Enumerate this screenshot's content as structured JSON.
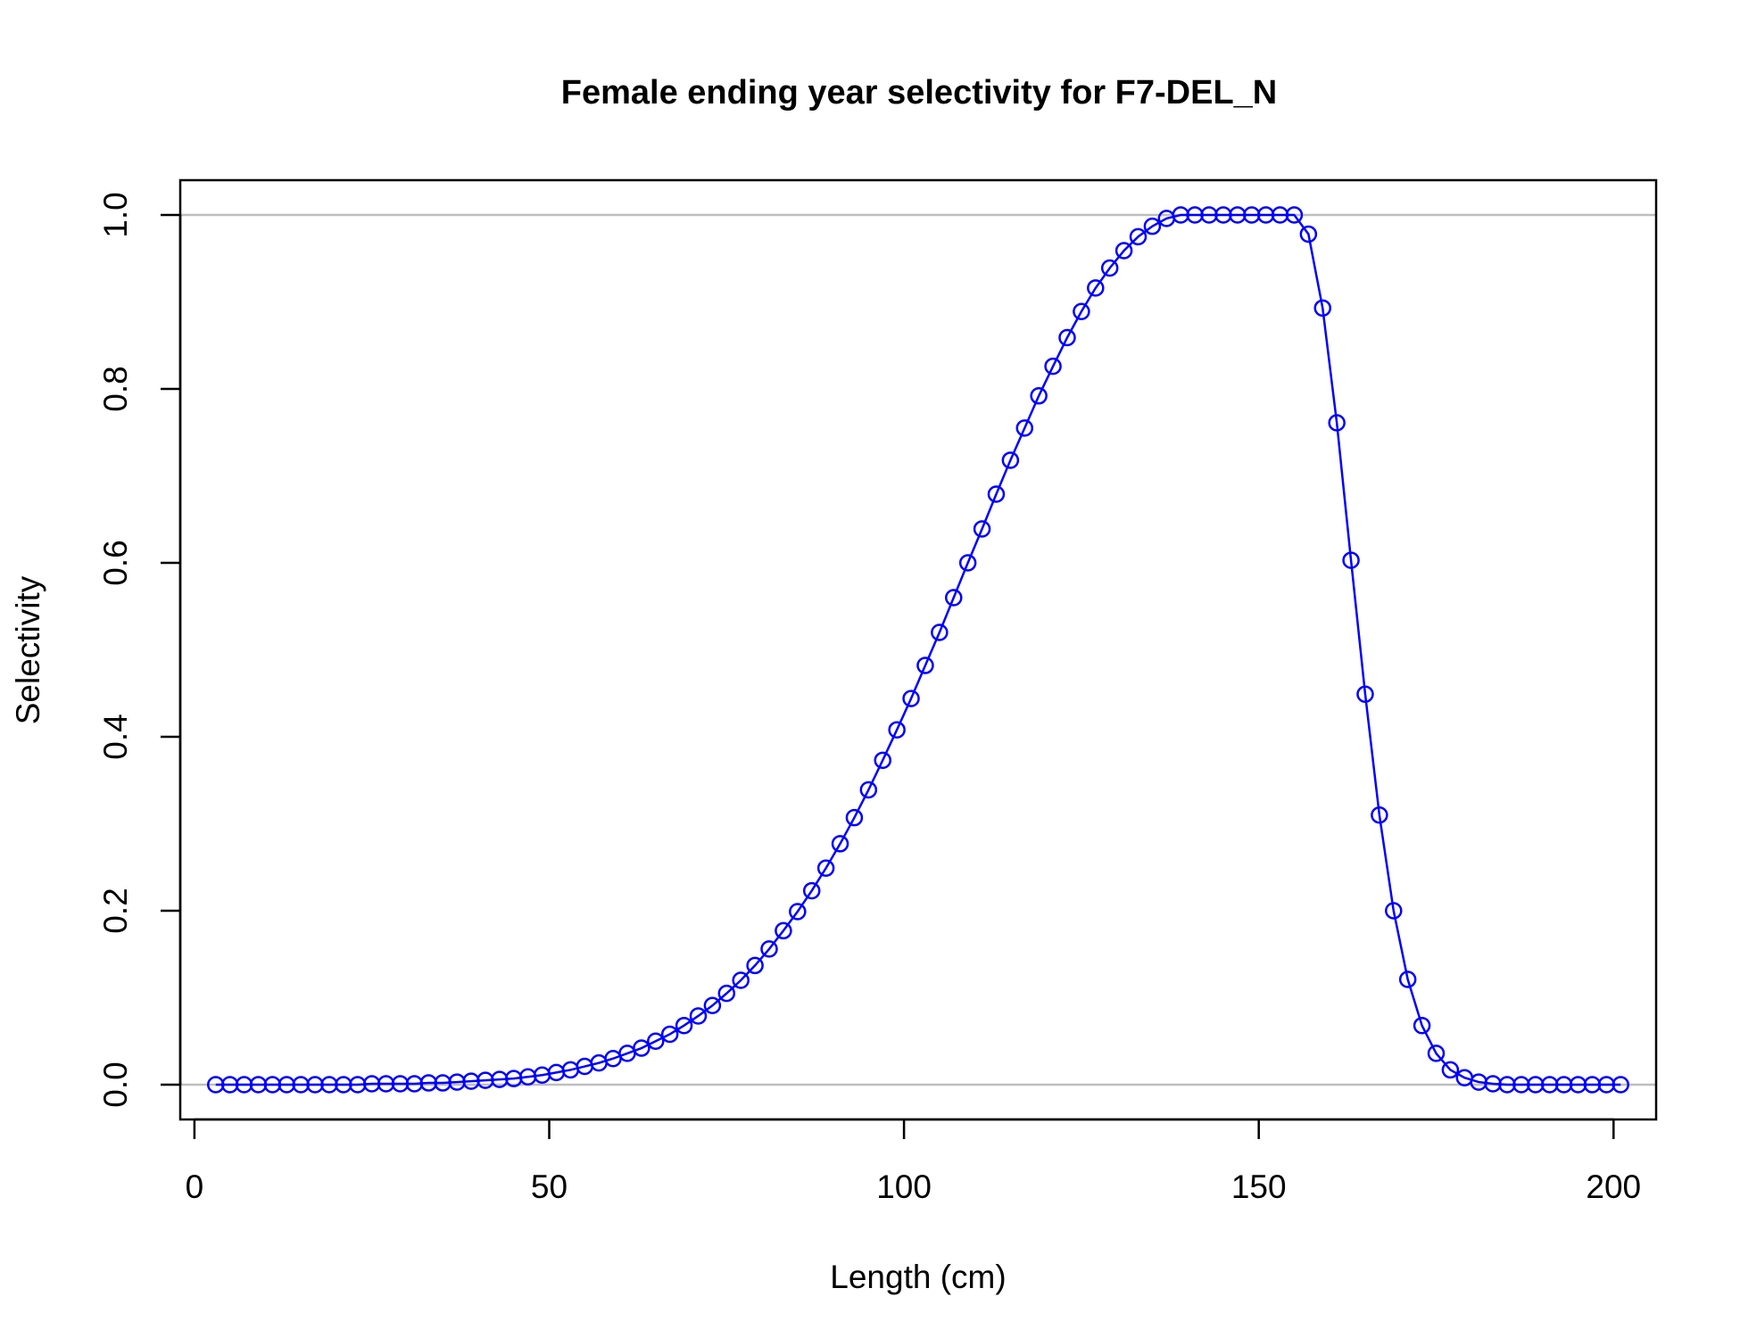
{
  "chart_data": {
    "type": "line",
    "title": "Female ending year selectivity for F7-DEL_N",
    "xlabel": "Length (cm)",
    "ylabel": "Selectivity",
    "xlim": [
      -2,
      206
    ],
    "ylim": [
      -0.04,
      1.04
    ],
    "xticks": [
      0,
      50,
      100,
      150,
      200
    ],
    "xtick_labels": [
      "0",
      "50",
      "100",
      "150",
      "200"
    ],
    "yticks": [
      0.0,
      0.2,
      0.4,
      0.6,
      0.8,
      1.0
    ],
    "ytick_labels": [
      "0.0",
      "0.2",
      "0.4",
      "0.6",
      "0.8",
      "1.0"
    ],
    "reference_lines": [
      0,
      1
    ],
    "reference_line_color": "#bebebe",
    "series": [
      {
        "color": "#0000ff",
        "marker": "open-circle",
        "x": [
          3,
          5,
          7,
          9,
          11,
          13,
          15,
          17,
          19,
          21,
          23,
          25,
          27,
          29,
          31,
          33,
          35,
          37,
          39,
          41,
          43,
          45,
          47,
          49,
          51,
          53,
          55,
          57,
          59,
          61,
          63,
          65,
          67,
          69,
          71,
          73,
          75,
          77,
          79,
          81,
          83,
          85,
          87,
          89,
          91,
          93,
          95,
          97,
          99,
          101,
          103,
          105,
          107,
          109,
          111,
          113,
          115,
          117,
          119,
          121,
          123,
          125,
          127,
          129,
          131,
          133,
          135,
          137,
          139,
          141,
          143,
          145,
          147,
          149,
          151,
          153,
          155,
          157,
          159,
          161,
          163,
          165,
          167,
          169,
          171,
          173,
          175,
          177,
          179,
          181,
          183,
          185,
          187,
          189,
          191,
          193,
          195,
          197,
          199,
          201
        ],
        "y": [
          0.0,
          0.0,
          0.0,
          0.0,
          0.0,
          0.0,
          0.0,
          0.0,
          0.0,
          0.0,
          0.0,
          0.001,
          0.001,
          0.001,
          0.001,
          0.002,
          0.002,
          0.003,
          0.004,
          0.005,
          0.006,
          0.007,
          0.009,
          0.011,
          0.014,
          0.017,
          0.021,
          0.025,
          0.03,
          0.036,
          0.042,
          0.05,
          0.058,
          0.068,
          0.079,
          0.091,
          0.105,
          0.12,
          0.137,
          0.156,
          0.177,
          0.199,
          0.223,
          0.249,
          0.277,
          0.307,
          0.339,
          0.373,
          0.408,
          0.444,
          0.482,
          0.52,
          0.56,
          0.6,
          0.639,
          0.679,
          0.718,
          0.755,
          0.792,
          0.826,
          0.859,
          0.889,
          0.916,
          0.939,
          0.959,
          0.975,
          0.987,
          0.996,
          1.0,
          1.0,
          1.0,
          1.0,
          1.0,
          1.0,
          1.0,
          1.0,
          1.0,
          0.978,
          0.893,
          0.761,
          0.603,
          0.449,
          0.31,
          0.2,
          0.121,
          0.068,
          0.036,
          0.017,
          0.008,
          0.003,
          0.001,
          0.0,
          0.0,
          0.0,
          0.0,
          0.0,
          0.0,
          0.0,
          0.0,
          0.0
        ]
      }
    ]
  }
}
